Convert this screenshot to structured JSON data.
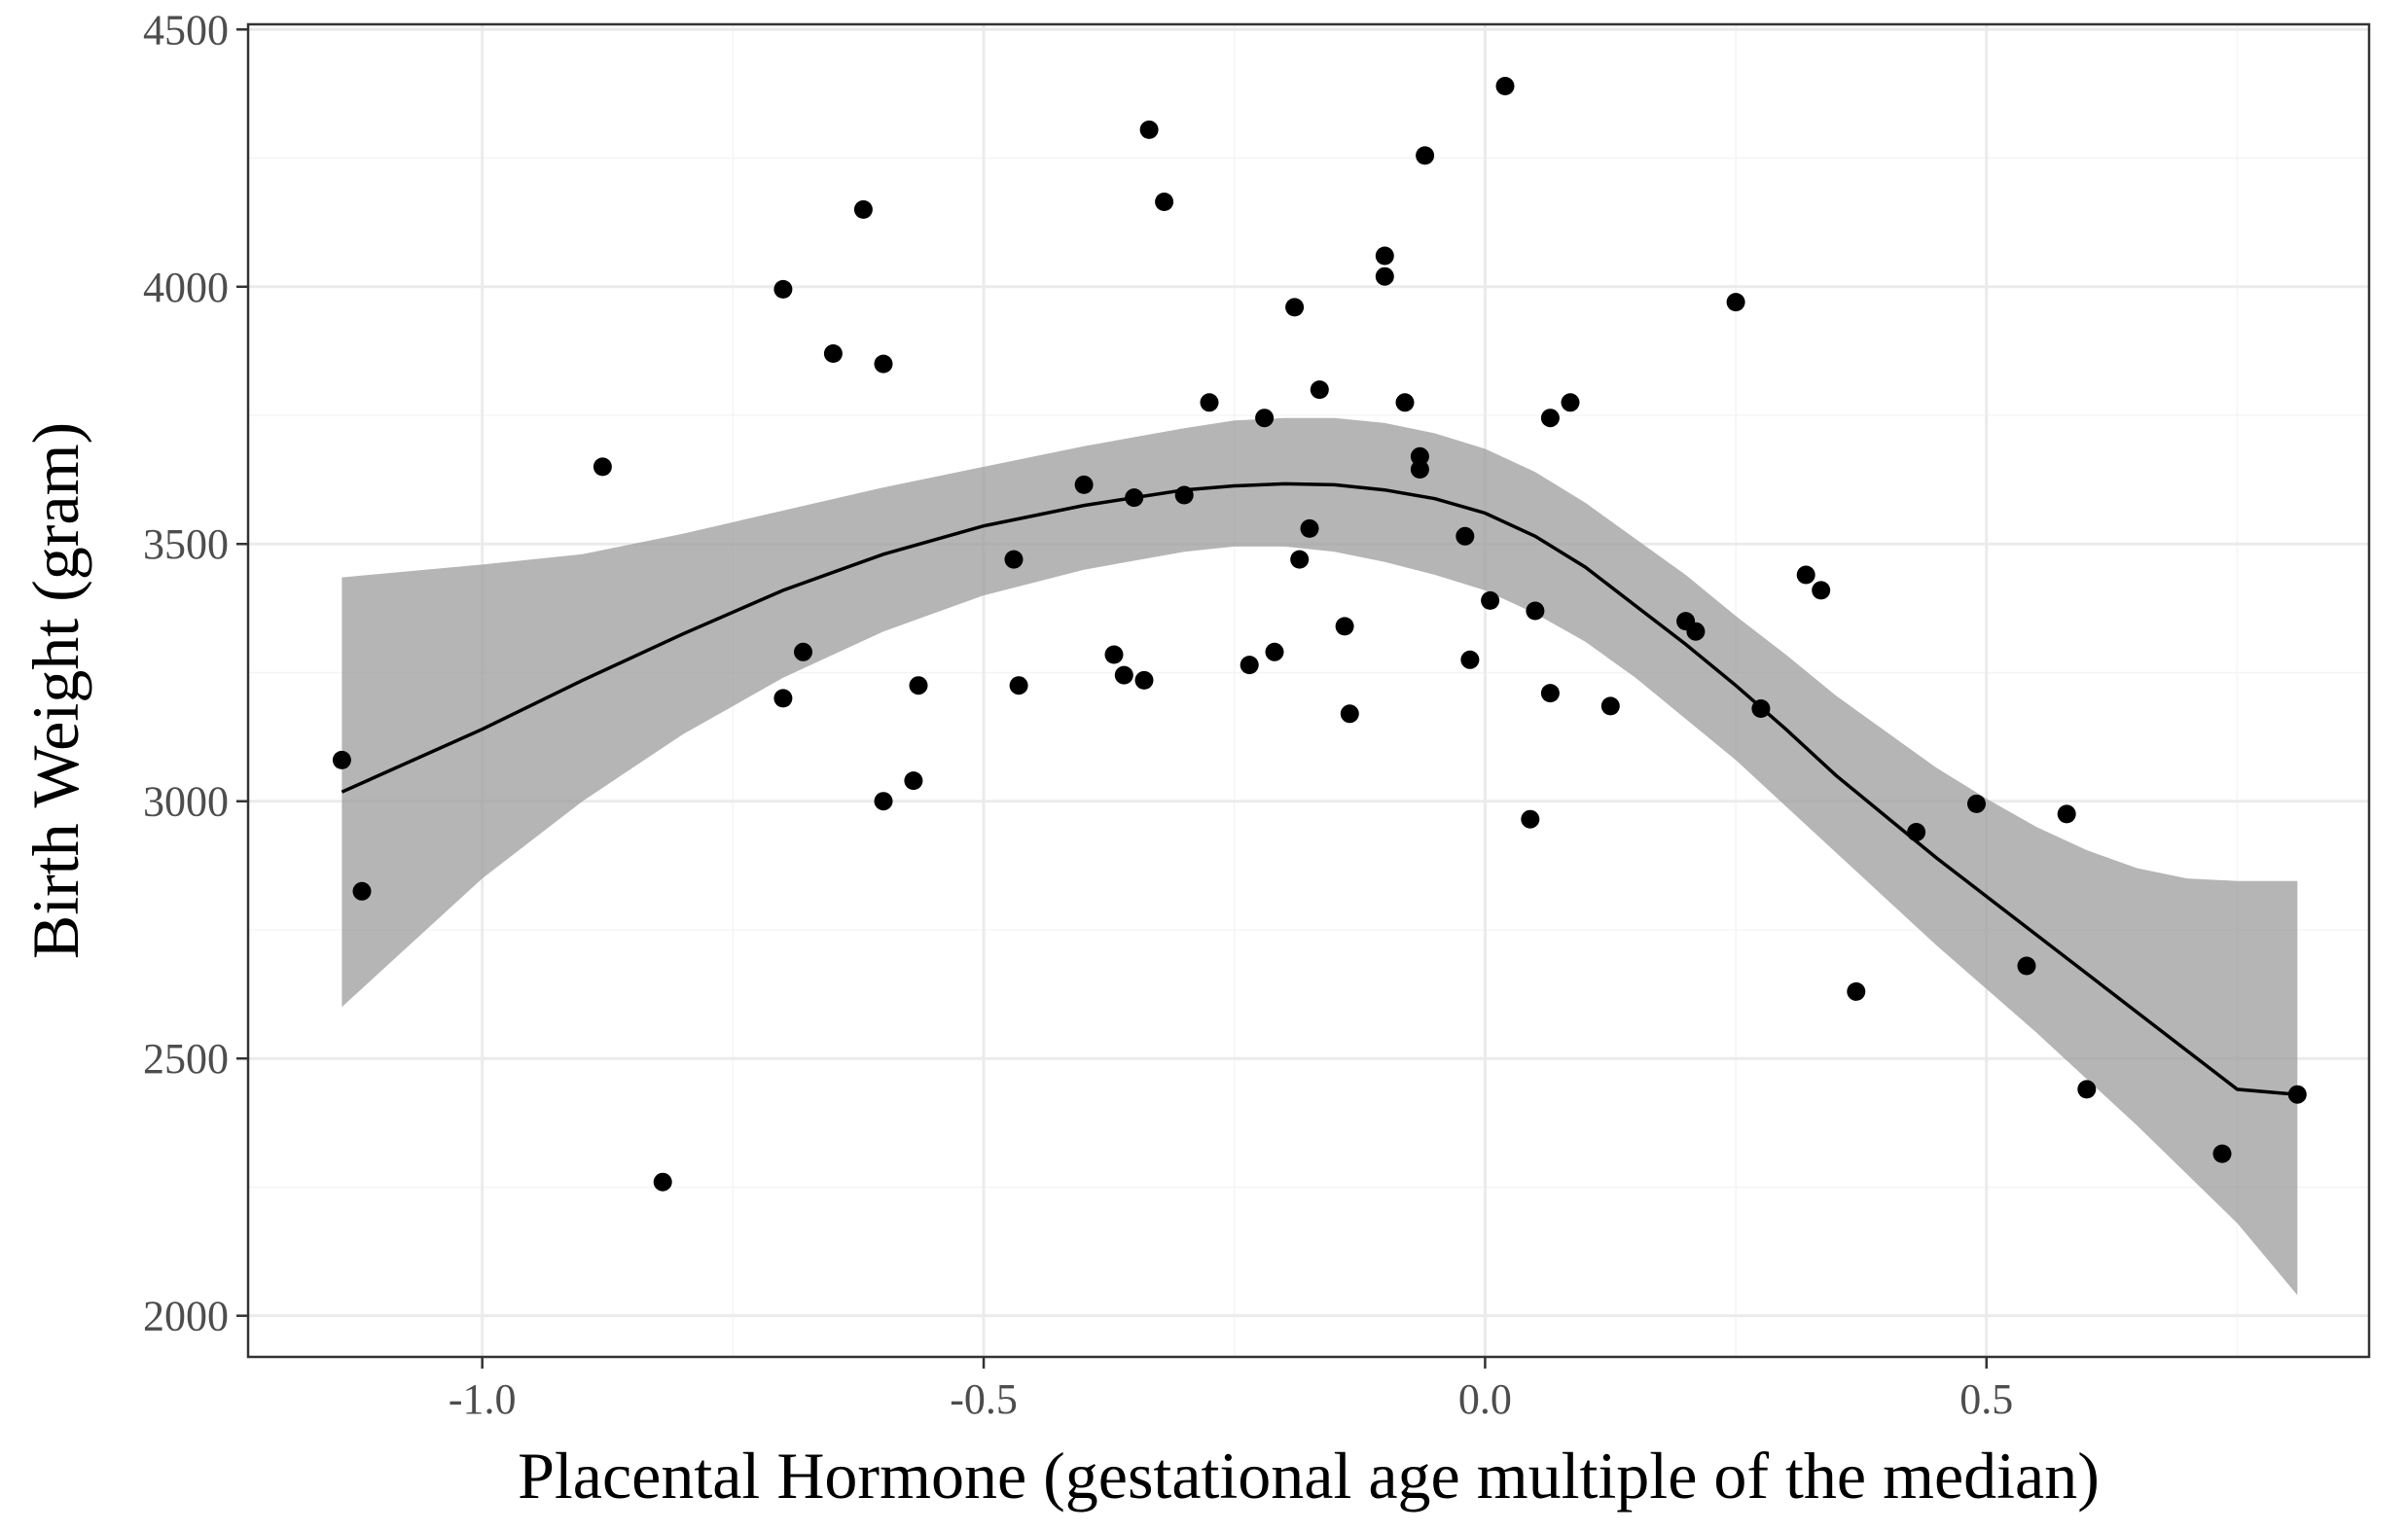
{
  "chart_data": {
    "type": "scatter",
    "xlabel": "Placental Hormone (gestational age multiple of the median)",
    "ylabel": "Birth Weight (gram)",
    "xlim": [
      -1.2335,
      0.8815
    ],
    "ylim": [
      1920,
      4510
    ],
    "x_ticks": [
      -1.0,
      -0.5,
      0.0,
      0.5
    ],
    "x_tick_labels": [
      "-1.0",
      "-0.5",
      "0.0",
      "0.5"
    ],
    "y_ticks": [
      2000,
      2500,
      3000,
      3500,
      4000,
      4500
    ],
    "y_tick_labels": [
      "2000",
      "2500",
      "3000",
      "3500",
      "4000",
      "4500"
    ],
    "grid": true,
    "colors": {
      "points": "#000000",
      "smooth_line": "#000000",
      "confidence_band": "#999999",
      "grid": "#ebebeb",
      "panel_border": "#333333"
    },
    "points": [
      [
        -1.14,
        3080
      ],
      [
        -1.12,
        2825
      ],
      [
        -0.88,
        3650
      ],
      [
        -0.82,
        2260
      ],
      [
        -0.7,
        3995
      ],
      [
        -0.7,
        3200
      ],
      [
        -0.68,
        3290
      ],
      [
        -0.65,
        3870
      ],
      [
        -0.62,
        4150
      ],
      [
        -0.6,
        3850
      ],
      [
        -0.6,
        3000
      ],
      [
        -0.57,
        3040
      ],
      [
        -0.565,
        3225
      ],
      [
        -0.47,
        3470
      ],
      [
        -0.465,
        3225
      ],
      [
        -0.4,
        3615
      ],
      [
        -0.37,
        3285
      ],
      [
        -0.36,
        3245
      ],
      [
        -0.35,
        3590
      ],
      [
        -0.34,
        3235
      ],
      [
        -0.335,
        4305
      ],
      [
        -0.32,
        4165
      ],
      [
        -0.3,
        3595
      ],
      [
        -0.275,
        3775
      ],
      [
        -0.235,
        3265
      ],
      [
        -0.22,
        3745
      ],
      [
        -0.21,
        3290
      ],
      [
        -0.19,
        3960
      ],
      [
        -0.185,
        3470
      ],
      [
        -0.175,
        3530
      ],
      [
        -0.165,
        3800
      ],
      [
        -0.14,
        3340
      ],
      [
        -0.135,
        3170
      ],
      [
        -0.1,
        4060
      ],
      [
        -0.1,
        4020
      ],
      [
        -0.08,
        3775
      ],
      [
        -0.065,
        3670
      ],
      [
        -0.065,
        3645
      ],
      [
        -0.06,
        4255
      ],
      [
        -0.02,
        3515
      ],
      [
        -0.015,
        3275
      ],
      [
        0.005,
        3390
      ],
      [
        0.02,
        4390
      ],
      [
        0.045,
        2965
      ],
      [
        0.05,
        3370
      ],
      [
        0.065,
        3745
      ],
      [
        0.065,
        3210
      ],
      [
        0.085,
        3775
      ],
      [
        0.125,
        3185
      ],
      [
        0.2,
        3350
      ],
      [
        0.21,
        3330
      ],
      [
        0.25,
        3970
      ],
      [
        0.275,
        3180
      ],
      [
        0.32,
        3440
      ],
      [
        0.335,
        3410
      ],
      [
        0.37,
        2630
      ],
      [
        0.43,
        2940
      ],
      [
        0.49,
        2995
      ],
      [
        0.54,
        2680
      ],
      [
        0.58,
        2975
      ],
      [
        0.6,
        2440
      ],
      [
        0.735,
        2315
      ],
      [
        0.81,
        2430
      ]
    ],
    "smooth": {
      "x": [
        -1.14,
        -1.0,
        -0.9,
        -0.8,
        -0.7,
        -0.6,
        -0.5,
        -0.4,
        -0.3,
        -0.25,
        -0.2,
        -0.15,
        -0.1,
        -0.05,
        0.0,
        0.05,
        0.1,
        0.15,
        0.2,
        0.25,
        0.3,
        0.35,
        0.4,
        0.45,
        0.5,
        0.55,
        0.6,
        0.65,
        0.7,
        0.75,
        0.81
      ],
      "y": [
        3018,
        3140,
        3235,
        3325,
        3410,
        3480,
        3535,
        3575,
        3605,
        3613,
        3617,
        3615,
        3605,
        3588,
        3560,
        3515,
        3455,
        3380,
        3305,
        3225,
        3140,
        3050,
        2970,
        2890,
        2815,
        2740,
        2665,
        2590,
        2515,
        2440,
        2430
      ],
      "lower": [
        2600,
        2850,
        3000,
        3130,
        3240,
        3330,
        3400,
        3450,
        3485,
        3495,
        3495,
        3485,
        3465,
        3440,
        3410,
        3365,
        3310,
        3240,
        3160,
        3080,
        2990,
        2900,
        2810,
        2720,
        2635,
        2550,
        2460,
        2370,
        2275,
        2180,
        2040
      ],
      "upper": [
        3435,
        3460,
        3480,
        3520,
        3565,
        3610,
        3650,
        3690,
        3725,
        3740,
        3745,
        3745,
        3735,
        3715,
        3685,
        3640,
        3580,
        3510,
        3440,
        3360,
        3285,
        3205,
        3135,
        3065,
        3005,
        2950,
        2905,
        2870,
        2850,
        2845,
        2845
      ]
    }
  }
}
